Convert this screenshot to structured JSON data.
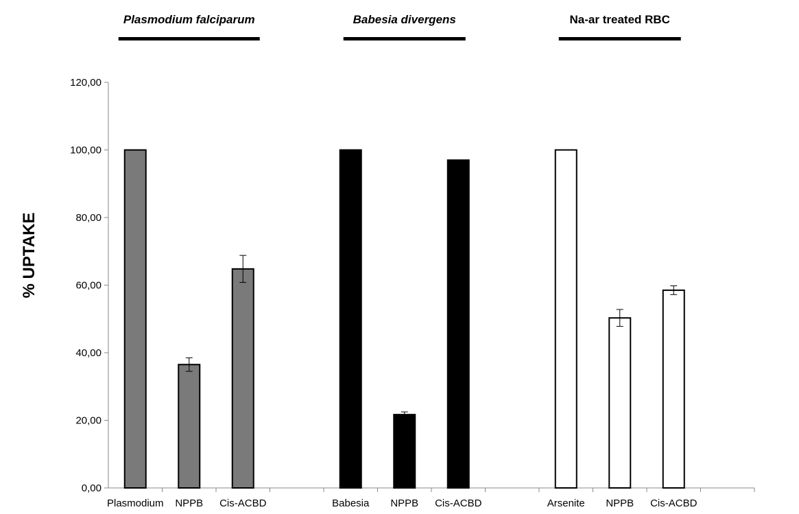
{
  "chart_data": {
    "type": "bar",
    "ylabel": "% UPTAKE",
    "xlabel": "",
    "ylim": [
      0,
      120
    ],
    "yticks": [
      0,
      20,
      40,
      60,
      80,
      100,
      120
    ],
    "ytick_labels": [
      "0,00",
      "20,00",
      "40,00",
      "60,00",
      "80,00",
      "100,00",
      "120,00"
    ],
    "grid": false,
    "legend": "none",
    "groups": [
      {
        "title": "Plasmodium falciparum",
        "title_italic": true,
        "color": "#7a7a7a",
        "bars": [
          {
            "label": "Plasmodium",
            "value": 100,
            "error": null
          },
          {
            "label": "NPPB",
            "value": 36.5,
            "error": 2.0
          },
          {
            "label": "Cis-ACBD",
            "value": 64.8,
            "error": 4.0
          }
        ]
      },
      {
        "title": "Babesia divergens",
        "title_italic": true,
        "color": "#000000",
        "bars": [
          {
            "label": "Babesia",
            "value": 100,
            "error": null
          },
          {
            "label": "NPPB",
            "value": 21.7,
            "error": 0.8
          },
          {
            "label": "Cis-ACBD",
            "value": 97,
            "error": null
          }
        ]
      },
      {
        "title": "Na-ar treated RBC",
        "title_italic": false,
        "color": "#ffffff",
        "bars": [
          {
            "label": "Arsenite",
            "value": 100,
            "error": null
          },
          {
            "label": "NPPB",
            "value": 50.3,
            "error": 2.5
          },
          {
            "label": "Cis-ACBD",
            "value": 58.5,
            "error": 1.3
          }
        ]
      }
    ]
  }
}
